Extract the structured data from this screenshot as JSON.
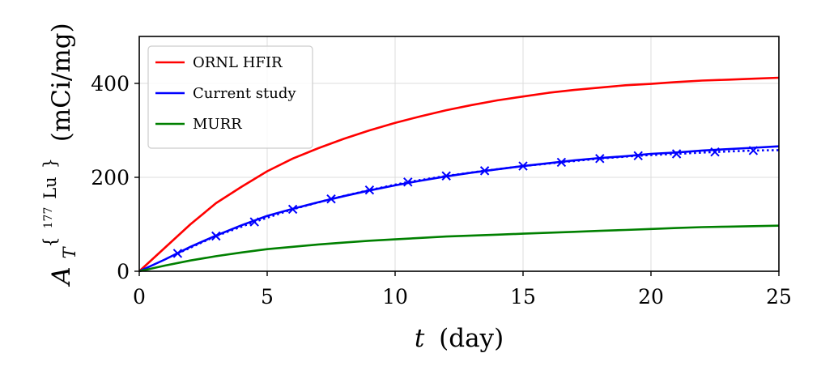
{
  "chart_data": {
    "type": "line",
    "xlabel_var": "t",
    "xlabel_unit": "(day)",
    "ylabel_base": "A",
    "ylabel_sub": "T",
    "ylabel_sup_mass": "177",
    "ylabel_sup_elem": "Lu",
    "ylabel_unit": "(mCi/mg)",
    "xlim": [
      0,
      25
    ],
    "ylim": [
      0,
      500
    ],
    "xticks": [
      0,
      5,
      10,
      15,
      20,
      25
    ],
    "yticks": [
      0,
      200,
      400
    ],
    "grid": true,
    "legend_position": "top-left",
    "series": [
      {
        "name": "ORNL HFIR",
        "color": "#ff0000",
        "style": "solid",
        "x": [
          0,
          1,
          2,
          3,
          4,
          5,
          6,
          7,
          8,
          9,
          10,
          11,
          12,
          13,
          14,
          15,
          16,
          17,
          18,
          19,
          20,
          21,
          22,
          23,
          24,
          25
        ],
        "y": [
          0,
          50,
          100,
          145,
          180,
          213,
          240,
          262,
          282,
          300,
          316,
          330,
          343,
          354,
          364,
          372,
          380,
          386,
          391,
          396,
          399,
          403,
          406,
          408,
          410,
          412
        ]
      },
      {
        "name": "Current study",
        "color": "#0000ff",
        "style": "solid",
        "x": [
          0,
          1,
          2,
          3,
          4,
          5,
          6,
          7,
          8,
          9,
          10,
          11,
          12,
          13,
          14,
          15,
          16,
          17,
          18,
          19,
          20,
          21,
          22,
          23,
          24,
          25
        ],
        "y": [
          0,
          25,
          52,
          76,
          98,
          118,
          133,
          147,
          160,
          172,
          183,
          193,
          202,
          210,
          217,
          224,
          230,
          236,
          241,
          245,
          250,
          253,
          257,
          260,
          263,
          266
        ]
      },
      {
        "name": "",
        "color": "#0000ff",
        "style": "dotted",
        "markers": true,
        "x": [
          1.5,
          3,
          4.5,
          6,
          7.5,
          9,
          10.5,
          12,
          13.5,
          15,
          16.5,
          18,
          19.5,
          21,
          22.5,
          24,
          25
        ],
        "y": [
          38,
          75,
          105,
          132,
          154,
          173,
          190,
          203,
          214,
          224,
          232,
          240,
          246,
          250,
          254,
          257,
          258
        ]
      },
      {
        "name": "MURR",
        "color": "#008000",
        "style": "solid",
        "x": [
          0,
          1,
          2,
          3,
          4,
          5,
          6,
          7,
          8,
          9,
          10,
          11,
          12,
          13,
          14,
          15,
          16,
          17,
          18,
          19,
          20,
          21,
          22,
          23,
          24,
          25
        ],
        "y": [
          0,
          12,
          23,
          32,
          40,
          47,
          52,
          57,
          61,
          65,
          68,
          71,
          74,
          76,
          78,
          80,
          82,
          84,
          86,
          88,
          90,
          92,
          94,
          95,
          96,
          97
        ]
      }
    ]
  }
}
